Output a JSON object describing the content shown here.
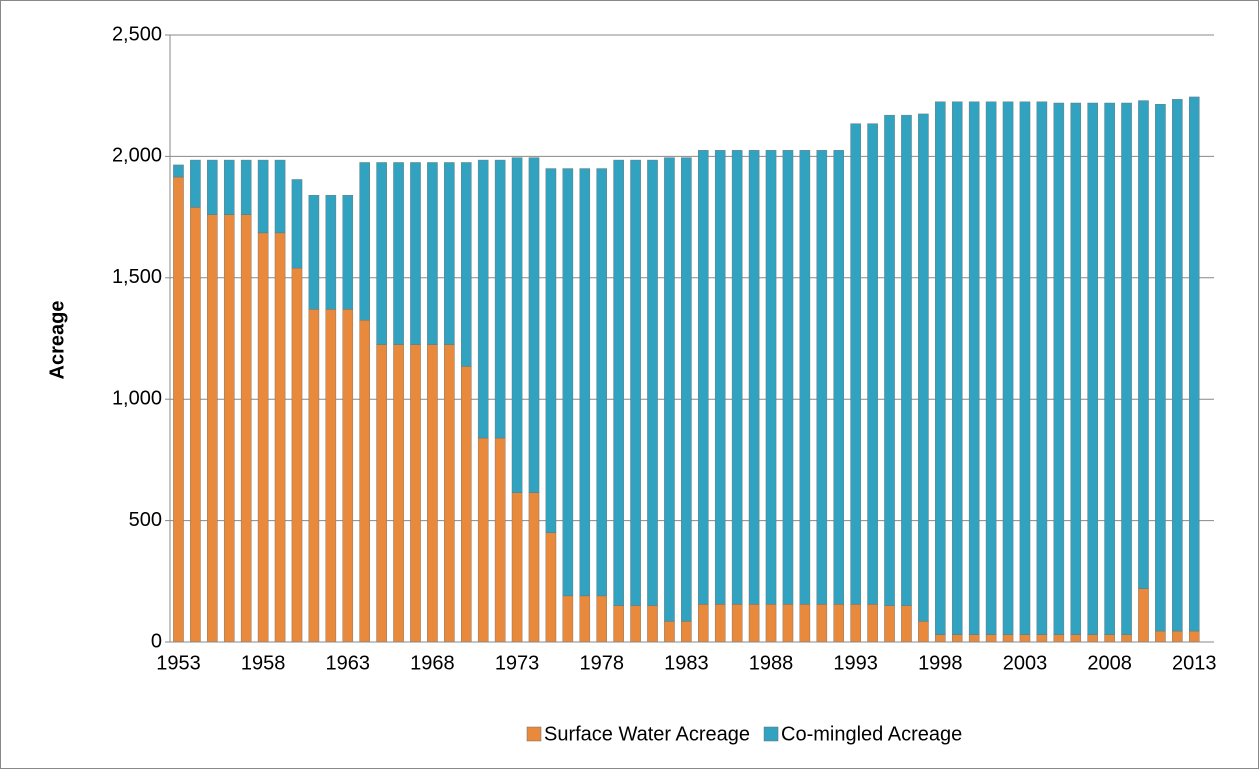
{
  "chart_data": {
    "type": "stacked-bar",
    "y_label": "Acreage",
    "categories": [
      "1953",
      null,
      null,
      null,
      null,
      "1958",
      null,
      null,
      null,
      null,
      "1963",
      null,
      null,
      null,
      null,
      "1968",
      null,
      null,
      null,
      null,
      "1973",
      null,
      null,
      null,
      null,
      "1978",
      null,
      null,
      null,
      null,
      "1983",
      null,
      null,
      null,
      null,
      "1988",
      null,
      null,
      null,
      null,
      "1993",
      null,
      null,
      null,
      null,
      "1998",
      null,
      null,
      null,
      null,
      "2003",
      null,
      null,
      null,
      null,
      "2008",
      null,
      null,
      null,
      null,
      "2013"
    ],
    "series": [
      {
        "name": "Surface Water Acreage",
        "color": "#e8893b",
        "values": [
          1915,
          1790,
          1760,
          1760,
          1760,
          1685,
          1685,
          1540,
          1370,
          1370,
          1370,
          1325,
          1225,
          1225,
          1225,
          1225,
          1225,
          1135,
          840,
          840,
          615,
          615,
          450,
          190,
          190,
          190,
          150,
          150,
          150,
          85,
          85,
          155,
          155,
          155,
          155,
          155,
          155,
          155,
          155,
          155,
          155,
          155,
          150,
          150,
          85,
          30,
          30,
          30,
          30,
          30,
          30,
          30,
          30,
          30,
          30,
          30,
          30,
          220,
          45,
          45,
          45
        ]
      },
      {
        "name": "Co-mingled Acreage",
        "color": "#31a3c0",
        "values": [
          50,
          195,
          225,
          225,
          225,
          300,
          300,
          365,
          470,
          470,
          470,
          650,
          750,
          750,
          750,
          750,
          750,
          840,
          1145,
          1145,
          1380,
          1380,
          1500,
          1760,
          1760,
          1760,
          1835,
          1835,
          1835,
          1910,
          1910,
          1870,
          1870,
          1870,
          1870,
          1870,
          1870,
          1870,
          1870,
          1870,
          1980,
          1980,
          2020,
          2020,
          2090,
          2195,
          2195,
          2195,
          2195,
          2195,
          2195,
          2195,
          2190,
          2190,
          2190,
          2190,
          2190,
          2010,
          2170,
          2190,
          2200
        ]
      }
    ],
    "ylim": [
      0,
      2500
    ],
    "yticks": [
      0,
      500,
      {
        "value": 1000,
        "label": "1,000"
      },
      {
        "value": 1500,
        "label": "1,500"
      },
      {
        "value": 2000,
        "label": "2,000"
      },
      {
        "value": 2500,
        "label": "2,500"
      }
    ],
    "grid": true,
    "legend": "bottom"
  }
}
